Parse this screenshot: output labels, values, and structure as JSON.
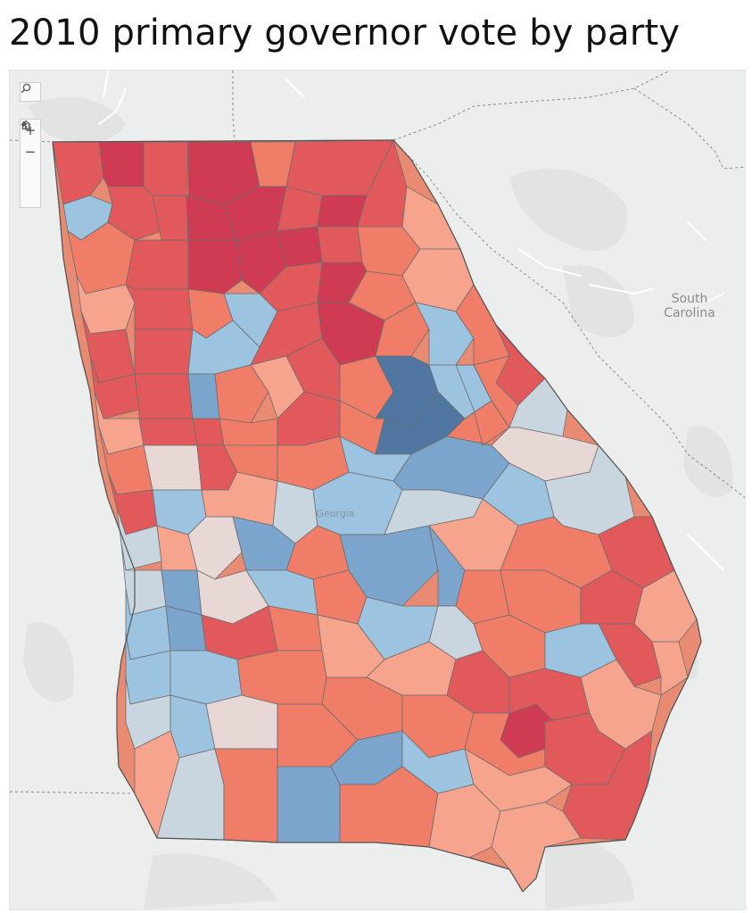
{
  "title": "2010 primary governor vote by party",
  "map": {
    "state_label": "Georgia",
    "neighbor_label": "South\nCarolina",
    "controls": {
      "search_icon": "search-icon",
      "zoom_in": "+",
      "zoom_out": "−",
      "home_icon": "home-icon",
      "expand_icon": "play-icon"
    },
    "colors": {
      "strong_rep": "#cf3b52",
      "rep": "#e2595c",
      "lean_rep": "#ef7d68",
      "slight_rep": "#f6a48d",
      "tossup": "#e8d8d5",
      "slight_dem": "#c9d6df",
      "lean_dem": "#9cc3df",
      "dem": "#7ba5cc",
      "strong_dem": "#4f77a1",
      "background": "#eceded",
      "water": "#dde3e6"
    }
  }
}
